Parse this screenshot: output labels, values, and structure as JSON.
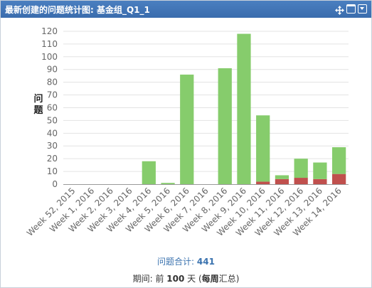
{
  "header": {
    "title": "最新创建的问题统计图: 基金组_Q1_1",
    "icons": [
      "move-icon",
      "maximize-icon",
      "menu-icon"
    ]
  },
  "chart_data": {
    "type": "bar",
    "stacked": true,
    "categories": [
      "Week 52, 2015",
      "Week 1, 2016",
      "Week 2, 2016",
      "Week 3, 2016",
      "Week 4, 2016",
      "Week 5, 2016",
      "Week 6, 2016",
      "Week 7, 2016",
      "Week 8, 2016",
      "Week 9, 2016",
      "Week 10, 2016",
      "Week 11, 2016",
      "Week 12, 2016",
      "Week 13, 2016",
      "Week 14, 2016"
    ],
    "series": [
      {
        "color": "#c0504d",
        "values": [
          0,
          0,
          0,
          0,
          0,
          0,
          0,
          0,
          0,
          0,
          2,
          4,
          5,
          4,
          8
        ]
      },
      {
        "color": "#86cc6c",
        "values": [
          0,
          0,
          0,
          0,
          18,
          1,
          86,
          0,
          91,
          118,
          52,
          3,
          15,
          13,
          21
        ]
      }
    ],
    "ylabel": "问题",
    "ylim": [
      0,
      125
    ],
    "yticks": [
      0,
      10,
      20,
      30,
      40,
      50,
      60,
      70,
      80,
      90,
      100,
      110,
      120
    ],
    "grid": true
  },
  "footer": {
    "total_label": "问题合计: ",
    "total_value": "441",
    "period_prefix": "期间: 前 ",
    "period_days": "100",
    "period_mid": " 天 (",
    "period_bold": "每周",
    "period_suffix": "汇总)"
  }
}
